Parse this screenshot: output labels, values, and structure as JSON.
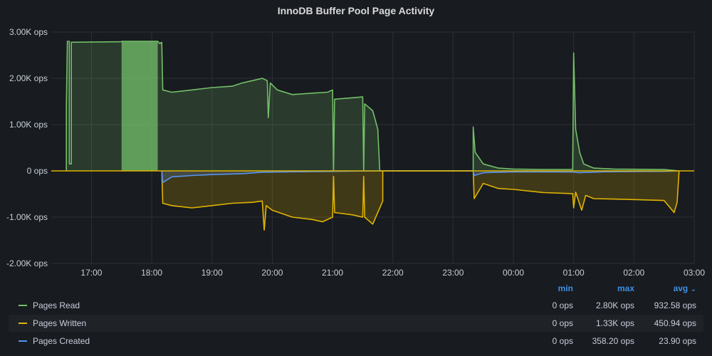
{
  "panel": {
    "title": "InnoDB Buffer Pool Page Activity"
  },
  "chart_data": {
    "type": "area",
    "title": "InnoDB Buffer Pool Page Activity",
    "xlabel": "",
    "ylabel": "",
    "y_unit": "ops",
    "ylim": [
      -2000,
      3000
    ],
    "yticks": [
      3000,
      2000,
      1000,
      0,
      -1000,
      -2000
    ],
    "ytick_labels": [
      "3.00K ops",
      "2.00K ops",
      "1.00K ops",
      "0 ops",
      "-1.00K ops",
      "-2.00K ops"
    ],
    "xlim": [
      "16:20",
      "03:00"
    ],
    "xticks": [
      "17:00",
      "18:00",
      "19:00",
      "20:00",
      "21:00",
      "22:00",
      "23:00",
      "00:00",
      "01:00",
      "02:00",
      "03:00"
    ],
    "grid": true,
    "legend_placement": "bottom",
    "series": [
      {
        "name": "Pages Read",
        "color": "#73bf69",
        "fill": "#73bf69",
        "points": [
          [
            "16:35",
            0
          ],
          [
            "16:35",
            1400
          ],
          [
            "16:36",
            2800
          ],
          [
            "16:38",
            2800
          ],
          [
            "16:38",
            150
          ],
          [
            "16:40",
            150
          ],
          [
            "16:40",
            2780
          ],
          [
            "17:30",
            2790
          ],
          [
            "17:30",
            2800
          ],
          [
            "18:06",
            2800
          ],
          [
            "18:08",
            2750
          ],
          [
            "18:10",
            2780
          ],
          [
            "18:11",
            1750
          ],
          [
            "18:20",
            1700
          ],
          [
            "18:40",
            1750
          ],
          [
            "19:00",
            1800
          ],
          [
            "19:20",
            1830
          ],
          [
            "19:30",
            1900
          ],
          [
            "19:40",
            1950
          ],
          [
            "19:50",
            2000
          ],
          [
            "19:55",
            1950
          ],
          [
            "19:56",
            1150
          ],
          [
            "19:58",
            1900
          ],
          [
            "20:05",
            1750
          ],
          [
            "20:20",
            1650
          ],
          [
            "20:40",
            1680
          ],
          [
            "20:55",
            1700
          ],
          [
            "21:00",
            1750
          ],
          [
            "21:01",
            0
          ],
          [
            "21:02",
            1550
          ],
          [
            "21:20",
            1580
          ],
          [
            "21:30",
            1600
          ],
          [
            "21:31",
            0
          ],
          [
            "21:32",
            1450
          ],
          [
            "21:40",
            1300
          ],
          [
            "21:45",
            900
          ],
          [
            "21:47",
            0
          ],
          [
            "23:20",
            0
          ],
          [
            "23:20",
            950
          ],
          [
            "23:22",
            400
          ],
          [
            "23:30",
            150
          ],
          [
            "23:45",
            60
          ],
          [
            "00:00",
            40
          ],
          [
            "00:30",
            30
          ],
          [
            "00:59",
            30
          ],
          [
            "01:00",
            2550
          ],
          [
            "01:02",
            900
          ],
          [
            "01:06",
            400
          ],
          [
            "01:10",
            150
          ],
          [
            "01:20",
            60
          ],
          [
            "01:40",
            40
          ],
          [
            "02:00",
            35
          ],
          [
            "02:30",
            30
          ],
          [
            "02:45",
            0
          ]
        ]
      },
      {
        "name": "Pages Written",
        "color": "#e0b400",
        "fill": "#e0b400",
        "points": [
          [
            "18:10",
            0
          ],
          [
            "18:11",
            -700
          ],
          [
            "18:20",
            -750
          ],
          [
            "18:40",
            -800
          ],
          [
            "19:00",
            -750
          ],
          [
            "19:20",
            -700
          ],
          [
            "19:40",
            -680
          ],
          [
            "19:50",
            -650
          ],
          [
            "19:52",
            -1280
          ],
          [
            "19:54",
            -750
          ],
          [
            "20:00",
            -850
          ],
          [
            "20:20",
            -1000
          ],
          [
            "20:40",
            -1050
          ],
          [
            "20:50",
            -1100
          ],
          [
            "21:00",
            -1000
          ],
          [
            "21:01",
            -120
          ],
          [
            "21:02",
            -900
          ],
          [
            "21:20",
            -950
          ],
          [
            "21:30",
            -1000
          ],
          [
            "21:31",
            -120
          ],
          [
            "21:32",
            -1000
          ],
          [
            "21:40",
            -1150
          ],
          [
            "21:45",
            -900
          ],
          [
            "21:50",
            -650
          ],
          [
            "21:50",
            0
          ],
          [
            "23:20",
            0
          ],
          [
            "23:21",
            -600
          ],
          [
            "23:30",
            -270
          ],
          [
            "23:45",
            -380
          ],
          [
            "00:00",
            -400
          ],
          [
            "00:30",
            -470
          ],
          [
            "00:59",
            -490
          ],
          [
            "01:00",
            -800
          ],
          [
            "01:02",
            -460
          ],
          [
            "01:08",
            -850
          ],
          [
            "01:12",
            -530
          ],
          [
            "01:20",
            -600
          ],
          [
            "01:40",
            -610
          ],
          [
            "02:00",
            -620
          ],
          [
            "02:30",
            -640
          ],
          [
            "02:40",
            -900
          ],
          [
            "02:43",
            -680
          ],
          [
            "02:45",
            0
          ]
        ]
      },
      {
        "name": "Pages Created",
        "color": "#5794f2",
        "fill": "#5794f2",
        "points": [
          [
            "18:10",
            0
          ],
          [
            "18:11",
            -250
          ],
          [
            "18:20",
            -130
          ],
          [
            "18:40",
            -100
          ],
          [
            "19:00",
            -80
          ],
          [
            "19:30",
            -60
          ],
          [
            "19:50",
            -30
          ],
          [
            "20:20",
            -20
          ],
          [
            "21:00",
            -10
          ],
          [
            "21:47",
            0
          ],
          [
            "23:20",
            0
          ],
          [
            "23:21",
            -100
          ],
          [
            "23:30",
            -40
          ],
          [
            "00:00",
            -20
          ],
          [
            "01:00",
            -25
          ],
          [
            "01:05",
            -40
          ],
          [
            "01:30",
            -20
          ],
          [
            "02:30",
            -10
          ],
          [
            "02:45",
            0
          ]
        ]
      }
    ]
  },
  "legend": {
    "headers": {
      "min": "min",
      "max": "max",
      "avg": "avg",
      "sort_icon": "chevron-down-icon"
    },
    "rows": [
      {
        "name": "Pages Read",
        "color": "#73bf69",
        "min": "0 ops",
        "max": "2.80K ops",
        "avg": "932.58 ops"
      },
      {
        "name": "Pages Written",
        "color": "#e0b400",
        "min": "0 ops",
        "max": "1.33K ops",
        "avg": "450.94 ops"
      },
      {
        "name": "Pages Created",
        "color": "#5794f2",
        "min": "0 ops",
        "max": "358.20 ops",
        "avg": "23.90 ops"
      }
    ]
  }
}
